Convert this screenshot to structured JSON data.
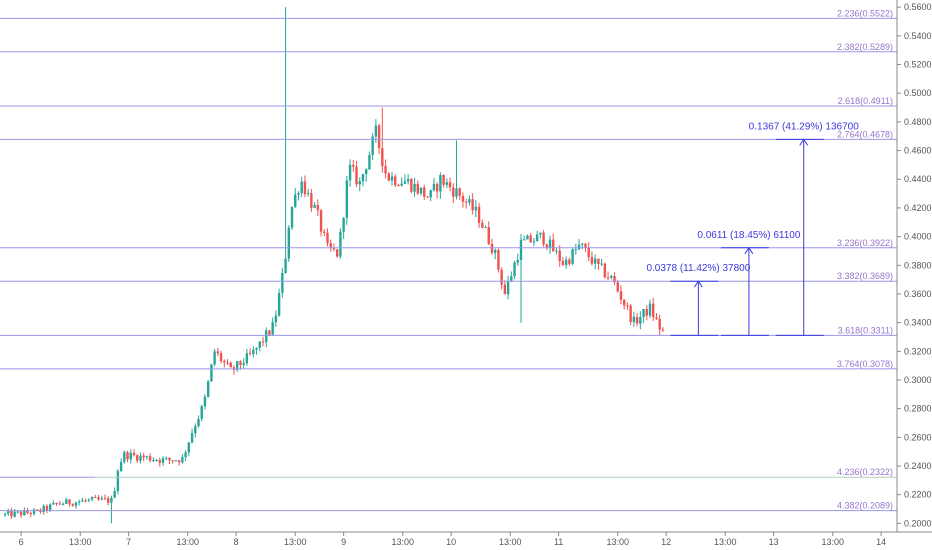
{
  "colors": {
    "fib_line": "#9c95e6",
    "fib_line_alt": "#b0d0b8",
    "fib_label": "#9575cd",
    "up_candle": "#26a69a",
    "down_candle": "#ef5350",
    "measure": "#3a3ae0",
    "axis": "#333333",
    "grid": "#f0f0f0"
  },
  "chart_data": {
    "type": "candlestick",
    "title": "",
    "xlabel": "",
    "ylabel": "",
    "ylim": [
      0.194,
      0.565
    ],
    "grid": false,
    "y_ticks": [
      "0.5600",
      "0.5400",
      "0.5200",
      "0.5000",
      "0.4800",
      "0.4600",
      "0.4400",
      "0.4200",
      "0.4000",
      "0.3800",
      "0.3600",
      "0.3400",
      "0.3200",
      "0.3000",
      "0.2800",
      "0.2600",
      "0.2400",
      "0.2200",
      "0.2000"
    ],
    "x_ticks": [
      {
        "label": "6",
        "t": 0.15
      },
      {
        "label": "13:00",
        "t": 0.7
      },
      {
        "label": "7",
        "t": 1.15
      },
      {
        "label": "13:00",
        "t": 1.7
      },
      {
        "label": "8",
        "t": 2.15
      },
      {
        "label": "13:00",
        "t": 2.7
      },
      {
        "label": "9",
        "t": 3.15
      },
      {
        "label": "13:00",
        "t": 3.7
      },
      {
        "label": "10",
        "t": 4.15
      },
      {
        "label": "13:00",
        "t": 4.7
      },
      {
        "label": "11",
        "t": 5.15
      },
      {
        "label": "13:00",
        "t": 5.7
      },
      {
        "label": "12",
        "t": 6.15
      },
      {
        "label": "13:00",
        "t": 6.7
      },
      {
        "label": "13",
        "t": 7.15
      },
      {
        "label": "13:00",
        "t": 7.7
      },
      {
        "label": "14",
        "t": 8.15
      }
    ],
    "fib_levels": [
      {
        "label": "2.236(0.5522)",
        "value": 0.5522
      },
      {
        "label": "2.382(0.5289)",
        "value": 0.5289
      },
      {
        "label": "2.618(0.4911)",
        "value": 0.4911
      },
      {
        "label": "2.764(0.4678)",
        "value": 0.4678
      },
      {
        "label": "3.236(0.3922)",
        "value": 0.3922
      },
      {
        "label": "3.382(0.3689)",
        "value": 0.3689
      },
      {
        "label": "3.618(0.3311)",
        "value": 0.3311
      },
      {
        "label": "3.764(0.3078)",
        "value": 0.3078
      },
      {
        "label": "4.236(0.2322)",
        "value": 0.2322
      },
      {
        "label": "4.382(0.2089)",
        "value": 0.2089
      }
    ],
    "measurements": [
      {
        "label": "0.0378 (11.42%) 37800",
        "from": 0.3311,
        "to": 0.3689,
        "t": 6.45
      },
      {
        "label": "0.0611 (18.45%) 61100",
        "from": 0.3311,
        "to": 0.3922,
        "t": 6.92
      },
      {
        "label": "0.1367 (41.29%) 136700",
        "from": 0.3311,
        "to": 0.4678,
        "t": 7.43
      }
    ],
    "price_path": [
      {
        "t": 0.0,
        "v": 0.206
      },
      {
        "t": 0.3,
        "v": 0.208
      },
      {
        "t": 0.5,
        "v": 0.214
      },
      {
        "t": 0.8,
        "v": 0.216
      },
      {
        "t": 1.0,
        "v": 0.216
      },
      {
        "t": 1.05,
        "v": 0.238
      },
      {
        "t": 1.1,
        "v": 0.248
      },
      {
        "t": 1.3,
        "v": 0.246
      },
      {
        "t": 1.5,
        "v": 0.244
      },
      {
        "t": 1.65,
        "v": 0.245
      },
      {
        "t": 1.75,
        "v": 0.266
      },
      {
        "t": 1.85,
        "v": 0.283
      },
      {
        "t": 1.95,
        "v": 0.32
      },
      {
        "t": 2.1,
        "v": 0.306
      },
      {
        "t": 2.3,
        "v": 0.318
      },
      {
        "t": 2.5,
        "v": 0.338
      },
      {
        "t": 2.6,
        "v": 0.38
      },
      {
        "t": 2.65,
        "v": 0.416
      },
      {
        "t": 2.75,
        "v": 0.44
      },
      {
        "t": 2.9,
        "v": 0.416
      },
      {
        "t": 3.0,
        "v": 0.391
      },
      {
        "t": 3.1,
        "v": 0.388
      },
      {
        "t": 3.2,
        "v": 0.448
      },
      {
        "t": 3.3,
        "v": 0.437
      },
      {
        "t": 3.45,
        "v": 0.472
      },
      {
        "t": 3.55,
        "v": 0.442
      },
      {
        "t": 3.75,
        "v": 0.438
      },
      {
        "t": 3.95,
        "v": 0.427
      },
      {
        "t": 4.05,
        "v": 0.44
      },
      {
        "t": 4.2,
        "v": 0.431
      },
      {
        "t": 4.4,
        "v": 0.415
      },
      {
        "t": 4.55,
        "v": 0.39
      },
      {
        "t": 4.65,
        "v": 0.36
      },
      {
        "t": 4.8,
        "v": 0.395
      },
      {
        "t": 5.0,
        "v": 0.4
      },
      {
        "t": 5.2,
        "v": 0.381
      },
      {
        "t": 5.35,
        "v": 0.394
      },
      {
        "t": 5.5,
        "v": 0.38
      },
      {
        "t": 5.65,
        "v": 0.37
      },
      {
        "t": 5.85,
        "v": 0.34
      },
      {
        "t": 6.0,
        "v": 0.35
      },
      {
        "t": 6.1,
        "v": 0.335
      },
      {
        "t": 6.15,
        "v": 0.333
      }
    ],
    "highs": [
      {
        "t": 2.6,
        "v": 0.56
      },
      {
        "t": 3.5,
        "v": 0.49
      },
      {
        "t": 4.2,
        "v": 0.467
      }
    ]
  }
}
